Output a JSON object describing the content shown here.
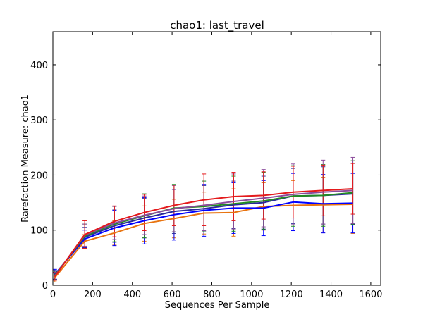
{
  "chart_data": {
    "type": "line",
    "title": "chao1: last_travel",
    "xlabel": "Sequences Per Sample",
    "ylabel": "Rarefaction Measure: chao1",
    "xlim": [
      0,
      1650
    ],
    "ylim": [
      0,
      460
    ],
    "xticks": [
      0,
      200,
      400,
      600,
      800,
      1000,
      1200,
      1400,
      1600
    ],
    "yticks": [
      0,
      100,
      200,
      300,
      400
    ],
    "grid": false,
    "legend": "none",
    "x": [
      10,
      160,
      310,
      460,
      610,
      760,
      910,
      1060,
      1210,
      1360,
      1510
    ],
    "series": [
      {
        "color": "#e87410",
        "values": [
          14,
          80,
          95,
          112,
          121,
          131,
          132,
          143,
          145,
          146,
          147
        ],
        "errors": [
          8,
          12,
          22,
          32,
          35,
          38,
          43,
          43,
          45,
          50,
          53
        ]
      },
      {
        "color": "#0000ff",
        "values": [
          20,
          84,
          104,
          117,
          128,
          136,
          140,
          140,
          151,
          148,
          149
        ],
        "errors": [
          9,
          16,
          32,
          42,
          46,
          47,
          46,
          50,
          52,
          53,
          54
        ]
      },
      {
        "color": "#2a2a9a",
        "values": [
          19,
          87,
          108,
          122,
          134,
          139,
          146,
          150,
          162,
          163,
          166
        ],
        "errors": [
          8,
          18,
          30,
          36,
          40,
          42,
          43,
          48,
          50,
          52,
          55
        ]
      },
      {
        "color": "#228b22",
        "values": [
          18,
          89,
          111,
          126,
          140,
          143,
          148,
          153,
          162,
          163,
          168
        ],
        "errors": [
          8,
          22,
          32,
          40,
          43,
          46,
          50,
          52,
          55,
          56,
          58
        ]
      },
      {
        "color": "#8b4b9b",
        "values": [
          17,
          91,
          113,
          127,
          139,
          145,
          152,
          158,
          165,
          169,
          172
        ],
        "errors": [
          7,
          20,
          30,
          35,
          42,
          46,
          50,
          52,
          55,
          58,
          60
        ]
      },
      {
        "color": "#e41a1c",
        "values": [
          16,
          92,
          116,
          132,
          145,
          155,
          161,
          163,
          169,
          172,
          175
        ],
        "errors": [
          7,
          25,
          28,
          33,
          37,
          47,
          44,
          43,
          47,
          46,
          46
        ]
      }
    ]
  }
}
